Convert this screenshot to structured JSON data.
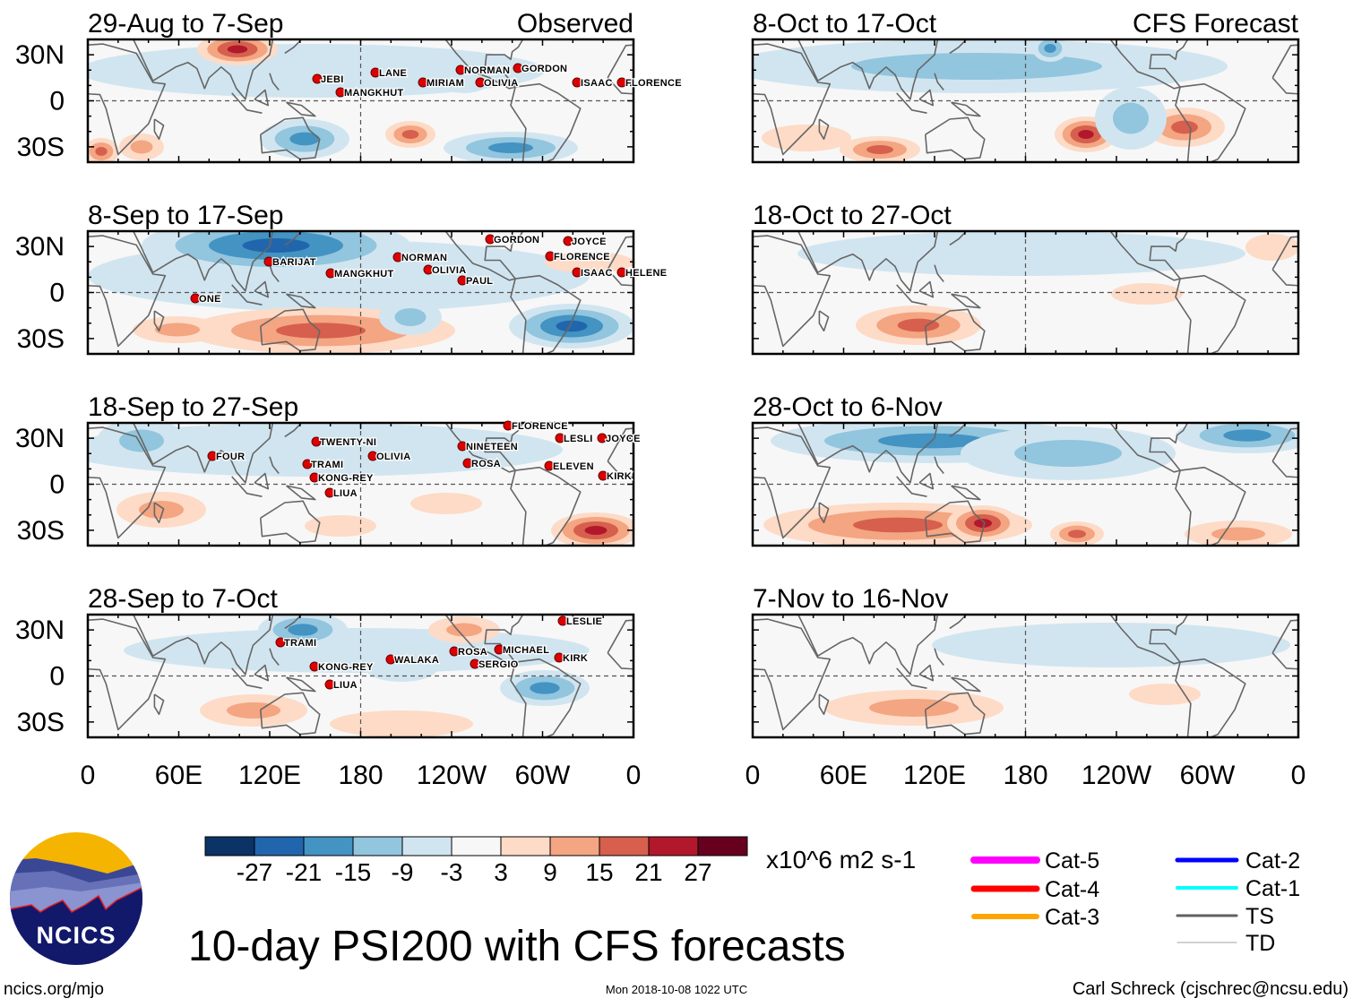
{
  "figure_title": "10-day PSI200 with CFS forecasts",
  "column_headers": {
    "observed": "Observed",
    "forecast": "CFS Forecast"
  },
  "lat_labels": [
    "30N",
    "0",
    "30S"
  ],
  "lon_labels": [
    "0",
    "60E",
    "120E",
    "180",
    "120W",
    "60W",
    "0"
  ],
  "observed_panels": [
    {
      "title": "29-Aug to 7-Sep",
      "storms": [
        "JEBI",
        "MANGKHUT",
        "LANE",
        "MIRIAM",
        "OLIVIA",
        "NORMAN",
        "GORDON",
        "ISAAC",
        "FLORENCE"
      ]
    },
    {
      "title": "8-Sep to 17-Sep",
      "storms": [
        "BARIJAT",
        "MANGKHUT",
        "NORMAN",
        "OLIVIA",
        "PAUL",
        "GORDON",
        "JOYCE",
        "FLORENCE",
        "ISAAC",
        "HELENE",
        "ONE"
      ]
    },
    {
      "title": "18-Sep to 27-Sep",
      "storms": [
        "FOUR",
        "TWENTY-NI",
        "OLIVIA",
        "TRAMI",
        "KONG-REY",
        "LIUA",
        "NINETEEN",
        "ROSA",
        "FLORENCE",
        "LESLI",
        "JOYCE",
        "ELEVEN",
        "KIRK"
      ]
    },
    {
      "title": "28-Sep to 7-Oct",
      "storms": [
        "TRAMI",
        "KONG-REY",
        "LIUA",
        "WALAKA",
        "ROSA",
        "SERGIO",
        "MICHAEL",
        "KIRK",
        "LESLIE"
      ]
    }
  ],
  "forecast_panels": [
    {
      "title": "8-Oct to 17-Oct"
    },
    {
      "title": "18-Oct to 27-Oct"
    },
    {
      "title": "28-Oct to 6-Nov"
    },
    {
      "title": "7-Nov to 16-Nov"
    }
  ],
  "colorbar": {
    "labels": [
      "-27",
      "-21",
      "-15",
      "-9",
      "-3",
      "3",
      "9",
      "15",
      "21",
      "27"
    ],
    "colors": [
      "#0b3366",
      "#2166ac",
      "#4393c3",
      "#92c5de",
      "#d1e5f0",
      "#f7f7f7",
      "#fddbc7",
      "#f4a582",
      "#d6604d",
      "#b2182b",
      "#67001f"
    ],
    "units": "x10^6 m2 s-1"
  },
  "track_legend": [
    {
      "label": "Cat-5",
      "color": "#ff00ff"
    },
    {
      "label": "Cat-4",
      "color": "#ff0000"
    },
    {
      "label": "Cat-3",
      "color": "#ffa500"
    },
    {
      "label": "Cat-2",
      "color": "#0000ff"
    },
    {
      "label": "Cat-1",
      "color": "#00ffff"
    },
    {
      "label": "TS",
      "color": "#606060"
    },
    {
      "label": "TD",
      "color": "#a0a0a0"
    }
  ],
  "logo": {
    "text": "NCICS"
  },
  "footer": {
    "url": "ncics.org/mjo",
    "timestamp": "Mon 2018-10-08 1022 UTC",
    "credit": "Carl Schreck (cjschrec@ncsu.edu)"
  }
}
